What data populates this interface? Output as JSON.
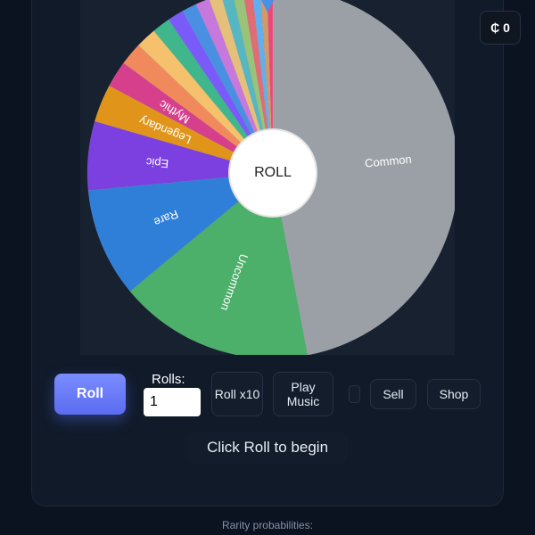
{
  "currency": "₵ 0",
  "wheel": {
    "center_label": "ROLL",
    "segments": [
      {
        "label": "Common",
        "weight": 47,
        "color": "#9aa0a6"
      },
      {
        "label": "Uncommon",
        "weight": 17,
        "color": "#4caf6a"
      },
      {
        "label": "Rare",
        "weight": 9.5,
        "color": "#2f7fd8"
      },
      {
        "label": "Epic",
        "weight": 6,
        "color": "#7c3fe0"
      },
      {
        "label": "Legendary",
        "weight": 3.3,
        "color": "#e0951a"
      },
      {
        "label": "Mythic",
        "weight": 2.3,
        "color": "#d63f8c"
      },
      {
        "label": null,
        "weight": 2,
        "color": "#f08a5d"
      },
      {
        "label": null,
        "weight": 1.8,
        "color": "#f5c16c"
      },
      {
        "label": null,
        "weight": 1.6,
        "color": "#3fb68b"
      },
      {
        "label": null,
        "weight": 1.4,
        "color": "#7a5af8"
      },
      {
        "label": null,
        "weight": 1.3,
        "color": "#4a90e2"
      },
      {
        "label": null,
        "weight": 1.2,
        "color": "#c678dd"
      },
      {
        "label": null,
        "weight": 1.1,
        "color": "#e5c07b"
      },
      {
        "label": null,
        "weight": 1,
        "color": "#56b6c2"
      },
      {
        "label": null,
        "weight": 0.9,
        "color": "#98c379"
      },
      {
        "label": null,
        "weight": 0.8,
        "color": "#e06c75"
      },
      {
        "label": null,
        "weight": 0.7,
        "color": "#61afef"
      },
      {
        "label": null,
        "weight": 0.6,
        "color": "#d19a66"
      },
      {
        "label": null,
        "weight": 0.5,
        "color": "#e8497a"
      }
    ]
  },
  "controls": {
    "roll": "Roll",
    "rolls_label": "Rolls:",
    "rolls_value": "1",
    "roll_x10": "Roll x10",
    "play_music": "Play Music",
    "sell": "Sell",
    "shop": "Shop"
  },
  "status": "Click Roll to begin",
  "footer": "Rarity probabilities:"
}
